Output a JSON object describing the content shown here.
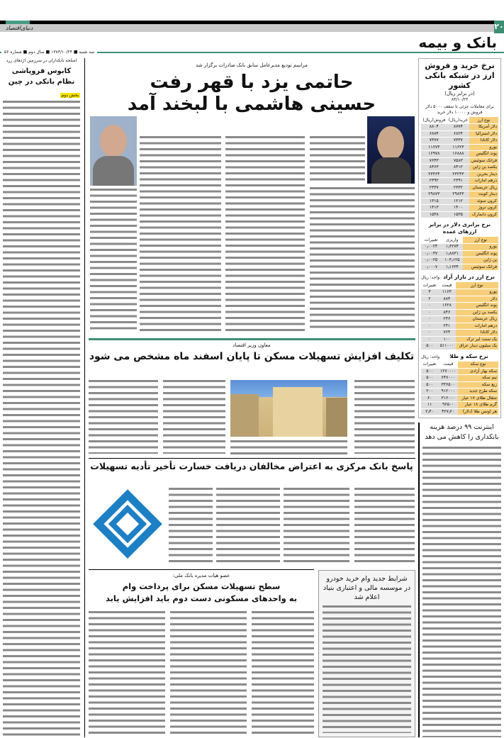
{
  "header": {
    "page_number": "۲۰",
    "paper_logo": "دنیای‌اقتصاد",
    "section": "بانک و بیمه",
    "dateline": "سه شنبه ■ ۱۳۸۳/۱۰/۲۴ ■ سال دوم ■ شماره ۵۶",
    "colors": {
      "accent": "#3d8f74",
      "table_label": "#f7cf7a"
    }
  },
  "rates": {
    "title": "نرخ خرید و فروش ارز در شبکه بانکی کشور",
    "unit": "(در برابر ریال)",
    "date": "۸۳/۱۰/۲۳",
    "note": "برای معاملات جزئی تا سقف ۵۰۰۰ دلار فروش و ۱۰۰۰۰ دلار خرید",
    "columns": [
      "نوع ارز",
      "خرید(ریال)",
      "فروش(ریال)"
    ],
    "rows": [
      [
        "دلار آمریکا",
        "۸۷۷۴",
        "۸۸۰۴"
      ],
      [
        "دلار استرالیا",
        "۶۸۲۴",
        "۶۸۷۴"
      ],
      [
        "دلار کانادا",
        "۷۳۳۷",
        "۷۳۷۷"
      ],
      [
        "یورو",
        "۱۱۶۲۳",
        "۱۱۶۷۳"
      ],
      [
        "پوند انگلیس",
        "۱۶۸۸۸",
        "۱۶۹۷۸"
      ],
      [
        "فرانک سوئیس",
        "۷۵۸۳",
        "۷۶۴۳"
      ],
      [
        "یکصد ین ژاپن",
        "۸۴۱۲",
        "۸۴۶۳"
      ],
      [
        "دینار بحرین",
        "۲۳۲۴۳",
        "۲۳۳۶۴"
      ],
      [
        "درهم امارات",
        "۲۳۹۱",
        "۲۳۹۲"
      ],
      [
        "ریال عربستان",
        "۲۳۳۲",
        "۲۳۳۷"
      ],
      [
        "دینار کویت",
        "۲۹۸۳۳",
        "۲۹۸۷۳"
      ],
      [
        "کرون سوئد",
        "۱۲۱۲",
        "۱۳۱۵"
      ],
      [
        "کرون نروژ",
        "۱۴۰۰",
        "۱۴۱۳"
      ],
      [
        "کرون دانمارک",
        "۱۵۳۵",
        "۱۵۳۸"
      ]
    ]
  },
  "parity": {
    "title": "نرخ برابری دلار در برابر ارزهای عمده",
    "columns": [
      "نوع ارز",
      "واریزی",
      "تغییرات"
    ],
    "rows": [
      [
        "یورو",
        "۱٫۳۲۷۴",
        "۰٫۰۰۲۴"
      ],
      [
        "پوند انگلیس",
        "۱٫۸۸۳۱",
        "۰٫۰۰۳۷"
      ],
      [
        "ین ژاپن",
        "۱۰۳٫۱۲۵",
        "۰٫۰۰۲۵"
      ],
      [
        "فرانک سوئیس",
        "۱٫۱۶۳۴",
        "۰٫۰۰۰۷"
      ]
    ]
  },
  "free_market": {
    "title": "نرخ ارز در بازار آزاد",
    "unit": "واحد: ریال",
    "columns": [
      "نوع ارز",
      "قیمت",
      "تغییرات"
    ],
    "rows": [
      [
        "یورو",
        "۱۱۶۳",
        "۳"
      ],
      [
        "دلار",
        "۸۸۴",
        "۲"
      ],
      [
        "پوند انگلیس",
        "۱۶۲۸",
        "۰"
      ],
      [
        "یکصد ین ژاپن",
        "۸۴۶",
        "۰"
      ],
      [
        "ریال عربستان",
        "۲۳۶",
        "۰"
      ],
      [
        "درهم امارات",
        "۲۴۱",
        "۰"
      ],
      [
        "دلار کانادا",
        "۷۶۴",
        "۰"
      ],
      [
        "یک سنت لیر ترک",
        "۱۰۰",
        "۰"
      ],
      [
        "یک میلیون دینار عراق",
        "۵۱۱۰۰۰",
        "۵۰۰"
      ]
    ]
  },
  "gold": {
    "title": "نرخ سکه و طلا",
    "unit": "واحد: ریال",
    "columns": [
      "نوع سکه",
      "قیمت",
      "تغییرات"
    ],
    "rows": [
      [
        "سکه بهار آزادی",
        "۱۲۷۰۰۰۰",
        "۵۰۰"
      ],
      [
        "نیم سکه",
        "۶۴۷۰۰۰",
        "۵۰۰"
      ],
      [
        "ربع سکه",
        "۳۳۶۵۰۰",
        "۵۰۰"
      ],
      [
        "سکه طرح جدید",
        "۹۱۲۰۰۰",
        "۲۰۰"
      ],
      [
        "مثقال طلای ۱۷ عیار",
        "۳۱۶۰۰۰",
        "۶۰"
      ],
      [
        "گرم طلای ۱۸ عیار",
        "۹۶۵۰۰",
        "۱۱"
      ],
      [
        "هر اونس طلا (دلار)",
        "۴۲۷٫۲۰",
        "۲٫۴۰"
      ]
    ]
  },
  "sidebar": {
    "kicker": "اسلحه بانکداران در سرزمین اژدهای زرد",
    "title": "کابوس فروپاشی نظام بانکی در چین",
    "badge": "بخش دوم"
  },
  "lead": {
    "kicker": "مراسم تودیع مدیرعامل سابق بانک صادرات برگزار شد",
    "title_line1": "حاتمی یزد با قهر رفت",
    "title_line2": "حسینی هاشمی با لبخند آمد"
  },
  "housing": {
    "kicker": "معاون وزیر اقتصاد",
    "title": "تکلیف افزایش تسهیلات مسکن تا پایان اسفند ماه مشخص می شود"
  },
  "central_bank": {
    "title": "پاسخ بانک مرکزی به اعتراض مخالفان دریافت خسارت تأخیر تأدیه تسهیلات"
  },
  "melli": {
    "kicker": "عضو هیات مدیره بانک ملی:",
    "title_line1": "سطح تسهیلات مسکن برای پرداخت وام",
    "title_line2": "به واحدهای مسکونی دست دوم باید افزایش یابد"
  },
  "car_loan": {
    "title": "شرایط جدید وام خرید خودرو در موسسه مالی و اعتباری بنیاد اعلام شد"
  },
  "internet": {
    "title": "اینترنت ۹۹ درصد هزینه بانکداری را کاهش می دهد"
  }
}
